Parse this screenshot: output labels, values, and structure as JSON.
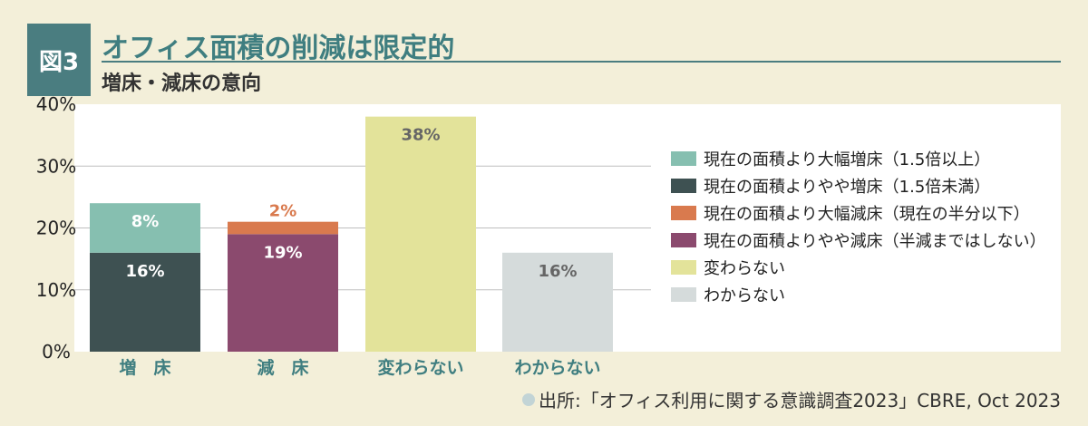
{
  "figure_label": "図3",
  "title": "オフィス面積の削減は限定的",
  "subtitle": "増床・減床の意向",
  "source": "出所:「オフィス利用に関する意識調査2023」CBRE, Oct 2023",
  "chart_data": {
    "type": "bar",
    "stacked": true,
    "categories": [
      "増　床",
      "減　床",
      "変わらない",
      "わからない"
    ],
    "yticks": [
      "0%",
      "10%",
      "20%",
      "30%",
      "40%"
    ],
    "ylim": [
      0,
      40
    ],
    "grid": true,
    "legend_position": "right",
    "series": [
      {
        "name": "現在の面積よりやや増床（1.5倍未満）",
        "color": "#3e5152",
        "values": [
          16,
          0,
          0,
          0
        ],
        "labels": [
          "16%",
          "",
          "",
          ""
        ]
      },
      {
        "name": "現在の面積より大幅増床（1.5倍以上）",
        "color": "#86bfb0",
        "values": [
          8,
          0,
          0,
          0
        ],
        "labels": [
          "8%",
          "",
          "",
          ""
        ]
      },
      {
        "name": "現在の面積よりやや減床（半減まではしない）",
        "color": "#8b4a6e",
        "values": [
          0,
          19,
          0,
          0
        ],
        "labels": [
          "",
          "19%",
          "",
          ""
        ]
      },
      {
        "name": "現在の面積より大幅減床（現在の半分以下）",
        "color": "#d97a4e",
        "values": [
          0,
          2,
          0,
          0
        ],
        "labels": [
          "",
          "2%",
          "",
          ""
        ]
      },
      {
        "name": "変わらない",
        "color": "#e3e39a",
        "values": [
          0,
          0,
          38,
          0
        ],
        "labels": [
          "",
          "",
          "38%",
          ""
        ]
      },
      {
        "name": "わからない",
        "color": "#d5dbdb",
        "values": [
          0,
          0,
          0,
          16
        ],
        "labels": [
          "",
          "",
          "",
          "16%"
        ]
      }
    ],
    "legend_order": [
      1,
      0,
      3,
      2,
      4,
      5
    ]
  }
}
